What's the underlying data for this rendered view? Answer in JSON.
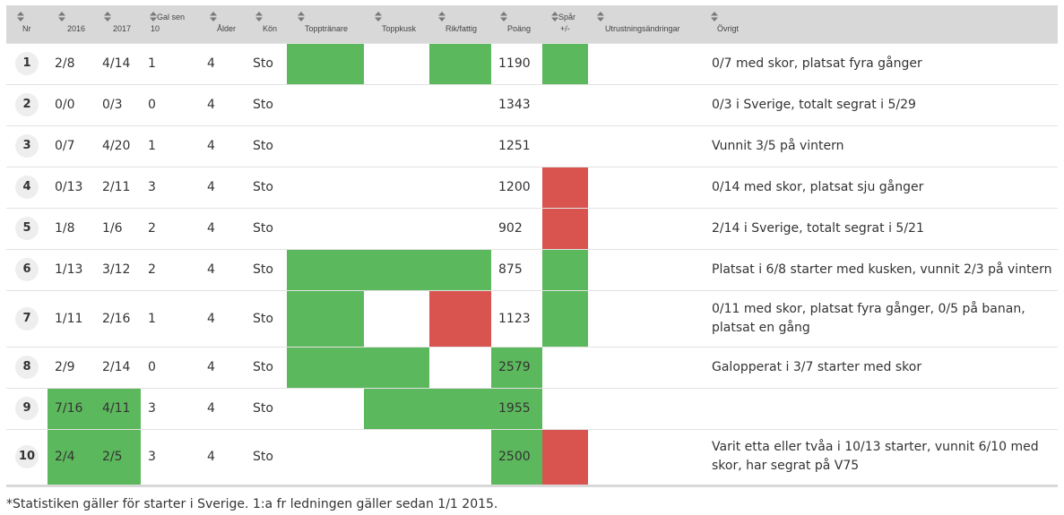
{
  "colors": {
    "green": "#5cb85c",
    "red": "#d9534f",
    "header_bg": "#d8d8d8"
  },
  "header": {
    "nr": "Nr",
    "y2016": "2016",
    "y2017": "2017",
    "gal_l1": "Gal sen",
    "gal_l2": "10",
    "alder": "Ålder",
    "kon": "Kön",
    "topptranare": "Topptränare",
    "toppkusk": "Toppkusk",
    "rikfattig": "Rik/fattig",
    "poang": "Poäng",
    "spar_l1": "Spår",
    "spar_l2": "+/-",
    "utrustning": "Utrustningsändringar",
    "ovrigt": "Övrigt"
  },
  "rows": [
    {
      "nr": "1",
      "y2016": "2/8",
      "y2017": "4/14",
      "gal": "1",
      "alder": "4",
      "kon": "Sto",
      "poang": "1190",
      "ovrigt": "0/7 med skor, platsat fyra gånger"
    },
    {
      "nr": "2",
      "y2016": "0/0",
      "y2017": "0/3",
      "gal": "0",
      "alder": "4",
      "kon": "Sto",
      "poang": "1343",
      "ovrigt": "0/3 i Sverige, totalt segrat i 5/29"
    },
    {
      "nr": "3",
      "y2016": "0/7",
      "y2017": "4/20",
      "gal": "1",
      "alder": "4",
      "kon": "Sto",
      "poang": "1251",
      "ovrigt": "Vunnit 3/5 på vintern"
    },
    {
      "nr": "4",
      "y2016": "0/13",
      "y2017": "2/11",
      "gal": "3",
      "alder": "4",
      "kon": "Sto",
      "poang": "1200",
      "ovrigt": "0/14 med skor, platsat sju gånger"
    },
    {
      "nr": "5",
      "y2016": "1/8",
      "y2017": "1/6",
      "gal": "2",
      "alder": "4",
      "kon": "Sto",
      "poang": "902",
      "ovrigt": "2/14 i Sverige, totalt segrat i 5/21"
    },
    {
      "nr": "6",
      "y2016": "1/13",
      "y2017": "3/12",
      "gal": "2",
      "alder": "4",
      "kon": "Sto",
      "poang": "875",
      "ovrigt": "Platsat i 6/8 starter med kusken, vunnit 2/3 på vintern"
    },
    {
      "nr": "7",
      "y2016": "1/11",
      "y2017": "2/16",
      "gal": "1",
      "alder": "4",
      "kon": "Sto",
      "poang": "1123",
      "ovrigt": "0/11 med skor, platsat fyra gånger, 0/5 på banan, platsat en gång"
    },
    {
      "nr": "8",
      "y2016": "2/9",
      "y2017": "2/14",
      "gal": "0",
      "alder": "4",
      "kon": "Sto",
      "poang": "2579",
      "ovrigt": "Galopperat i 3/7 starter med skor"
    },
    {
      "nr": "9",
      "y2016": "7/16",
      "y2017": "4/11",
      "gal": "3",
      "alder": "4",
      "kon": "Sto",
      "poang": "1955",
      "ovrigt": ""
    },
    {
      "nr": "10",
      "y2016": "2/4",
      "y2017": "2/5",
      "gal": "3",
      "alder": "4",
      "kon": "Sto",
      "poang": "2500",
      "ovrigt": "Varit etta eller tvåa i 10/13 starter, vunnit 6/10 med skor, har segrat på V75"
    }
  ],
  "footnote": "*Statistiken gäller för starter i Sverige. 1:a fr ledningen gäller sedan 1/1 2015."
}
